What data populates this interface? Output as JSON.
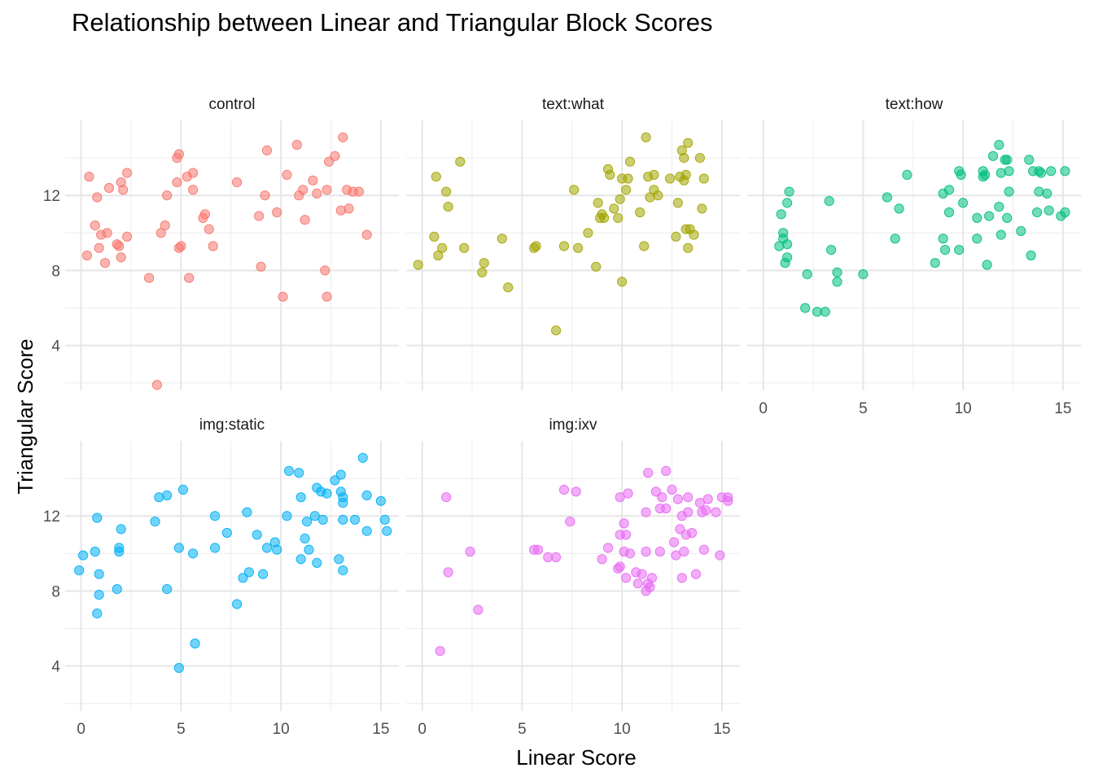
{
  "chart_data": {
    "type": "scatter",
    "title": "Relationship between Linear and Triangular Block Scores",
    "xlabel": "Linear Score",
    "ylabel": "Triangular Score",
    "xlim": [
      -0.8,
      15.9
    ],
    "ylim": [
      1.6,
      16.0
    ],
    "x_ticks": [
      "0",
      "5",
      "10",
      "15"
    ],
    "y_ticks": [
      "4",
      "8",
      "12"
    ],
    "grid": true,
    "panels": [
      {
        "name": "control",
        "color": "#F8766D",
        "points": [
          [
            0.3,
            8.8
          ],
          [
            0.4,
            13.0
          ],
          [
            0.7,
            10.4
          ],
          [
            0.8,
            11.9
          ],
          [
            0.9,
            9.2
          ],
          [
            1.0,
            9.9
          ],
          [
            1.2,
            8.4
          ],
          [
            1.3,
            10.0
          ],
          [
            1.4,
            12.4
          ],
          [
            1.8,
            9.4
          ],
          [
            1.9,
            9.3
          ],
          [
            2.0,
            12.7
          ],
          [
            2.0,
            8.7
          ],
          [
            2.1,
            12.3
          ],
          [
            2.3,
            13.2
          ],
          [
            2.3,
            9.8
          ],
          [
            3.4,
            7.6
          ],
          [
            3.8,
            1.9
          ],
          [
            4.0,
            10.0
          ],
          [
            4.2,
            10.4
          ],
          [
            4.3,
            12.0
          ],
          [
            4.8,
            12.7
          ],
          [
            4.8,
            14.0
          ],
          [
            4.9,
            14.2
          ],
          [
            4.9,
            9.2
          ],
          [
            5.0,
            9.3
          ],
          [
            5.3,
            13.0
          ],
          [
            5.4,
            7.6
          ],
          [
            5.6,
            13.2
          ],
          [
            5.6,
            12.3
          ],
          [
            6.1,
            10.8
          ],
          [
            6.2,
            11.0
          ],
          [
            6.4,
            10.2
          ],
          [
            6.6,
            9.3
          ],
          [
            7.8,
            12.7
          ],
          [
            8.9,
            10.9
          ],
          [
            9.0,
            8.2
          ],
          [
            9.2,
            12.0
          ],
          [
            9.3,
            14.4
          ],
          [
            9.8,
            11.1
          ],
          [
            10.1,
            6.6
          ],
          [
            10.3,
            13.1
          ],
          [
            10.8,
            14.7
          ],
          [
            10.9,
            12.0
          ],
          [
            11.1,
            12.3
          ],
          [
            11.2,
            10.7
          ],
          [
            11.6,
            12.8
          ],
          [
            11.8,
            12.1
          ],
          [
            12.2,
            8.0
          ],
          [
            12.3,
            12.3
          ],
          [
            12.3,
            6.6
          ],
          [
            12.4,
            13.8
          ],
          [
            12.7,
            14.1
          ],
          [
            13.0,
            11.2
          ],
          [
            13.1,
            15.1
          ],
          [
            13.3,
            12.3
          ],
          [
            13.4,
            11.3
          ],
          [
            13.6,
            12.2
          ],
          [
            13.9,
            12.2
          ],
          [
            14.3,
            9.9
          ]
        ]
      },
      {
        "name": "text:what",
        "color": "#A3A500",
        "points": [
          [
            -0.2,
            8.3
          ],
          [
            0.6,
            9.8
          ],
          [
            0.7,
            13.0
          ],
          [
            0.8,
            8.8
          ],
          [
            1.0,
            9.2
          ],
          [
            1.2,
            12.2
          ],
          [
            1.3,
            11.4
          ],
          [
            1.9,
            13.8
          ],
          [
            2.1,
            9.2
          ],
          [
            3.0,
            7.9
          ],
          [
            3.1,
            8.4
          ],
          [
            4.0,
            9.7
          ],
          [
            4.3,
            7.1
          ],
          [
            5.6,
            9.2
          ],
          [
            5.7,
            9.3
          ],
          [
            6.7,
            4.8
          ],
          [
            7.1,
            9.3
          ],
          [
            7.6,
            12.3
          ],
          [
            7.8,
            9.2
          ],
          [
            8.3,
            10.0
          ],
          [
            8.7,
            8.2
          ],
          [
            8.8,
            11.6
          ],
          [
            8.9,
            10.8
          ],
          [
            9.0,
            11.0
          ],
          [
            9.1,
            10.8
          ],
          [
            9.3,
            13.4
          ],
          [
            9.4,
            13.1
          ],
          [
            9.6,
            11.3
          ],
          [
            9.8,
            10.8
          ],
          [
            9.9,
            11.8
          ],
          [
            10.0,
            12.9
          ],
          [
            10.0,
            7.4
          ],
          [
            10.2,
            12.3
          ],
          [
            10.3,
            12.9
          ],
          [
            10.4,
            13.8
          ],
          [
            10.9,
            11.1
          ],
          [
            11.1,
            9.3
          ],
          [
            11.2,
            15.1
          ],
          [
            11.3,
            13.0
          ],
          [
            11.4,
            11.9
          ],
          [
            11.6,
            12.3
          ],
          [
            11.6,
            13.1
          ],
          [
            11.8,
            12.0
          ],
          [
            12.4,
            12.9
          ],
          [
            12.7,
            9.8
          ],
          [
            12.8,
            11.6
          ],
          [
            12.9,
            13.0
          ],
          [
            13.0,
            14.4
          ],
          [
            13.1,
            12.8
          ],
          [
            13.1,
            14.0
          ],
          [
            13.2,
            13.1
          ],
          [
            13.2,
            10.2
          ],
          [
            13.3,
            9.2
          ],
          [
            13.3,
            14.8
          ],
          [
            13.4,
            10.2
          ],
          [
            13.6,
            9.9
          ],
          [
            13.9,
            14.0
          ],
          [
            14.0,
            11.3
          ],
          [
            14.1,
            12.9
          ]
        ]
      },
      {
        "name": "text:how",
        "color": "#00BF7D",
        "points": [
          [
            0.8,
            9.3
          ],
          [
            0.9,
            11.0
          ],
          [
            1.0,
            10.0
          ],
          [
            1.0,
            9.7
          ],
          [
            1.1,
            8.4
          ],
          [
            1.2,
            9.4
          ],
          [
            1.2,
            8.7
          ],
          [
            1.2,
            11.6
          ],
          [
            1.3,
            12.2
          ],
          [
            2.1,
            6.0
          ],
          [
            2.2,
            7.8
          ],
          [
            2.7,
            5.8
          ],
          [
            3.1,
            5.8
          ],
          [
            3.3,
            11.7
          ],
          [
            3.4,
            9.1
          ],
          [
            3.7,
            7.4
          ],
          [
            3.7,
            7.9
          ],
          [
            5.0,
            7.8
          ],
          [
            6.2,
            11.9
          ],
          [
            6.6,
            9.7
          ],
          [
            6.8,
            11.3
          ],
          [
            7.2,
            13.1
          ],
          [
            8.6,
            8.4
          ],
          [
            9.0,
            9.7
          ],
          [
            9.0,
            12.1
          ],
          [
            9.1,
            9.1
          ],
          [
            9.3,
            11.1
          ],
          [
            9.3,
            12.3
          ],
          [
            9.8,
            9.1
          ],
          [
            9.8,
            13.3
          ],
          [
            9.9,
            13.1
          ],
          [
            10.0,
            11.6
          ],
          [
            10.7,
            9.7
          ],
          [
            10.7,
            10.8
          ],
          [
            11.0,
            13.0
          ],
          [
            11.0,
            13.3
          ],
          [
            11.1,
            13.1
          ],
          [
            11.2,
            8.3
          ],
          [
            11.3,
            10.9
          ],
          [
            11.5,
            14.1
          ],
          [
            11.8,
            11.4
          ],
          [
            11.8,
            14.7
          ],
          [
            11.9,
            9.9
          ],
          [
            11.9,
            13.2
          ],
          [
            12.1,
            13.9
          ],
          [
            12.2,
            13.9
          ],
          [
            12.2,
            10.8
          ],
          [
            12.3,
            13.3
          ],
          [
            12.3,
            12.2
          ],
          [
            12.9,
            10.1
          ],
          [
            13.3,
            13.9
          ],
          [
            13.4,
            8.8
          ],
          [
            13.5,
            13.3
          ],
          [
            13.7,
            11.1
          ],
          [
            13.8,
            13.3
          ],
          [
            13.8,
            12.2
          ],
          [
            13.9,
            13.2
          ],
          [
            14.2,
            12.1
          ],
          [
            14.3,
            11.2
          ],
          [
            14.4,
            13.3
          ],
          [
            14.9,
            10.9
          ],
          [
            15.1,
            13.3
          ],
          [
            15.1,
            11.1
          ]
        ]
      },
      {
        "name": "img:static",
        "color": "#00B0F6",
        "points": [
          [
            -0.1,
            9.1
          ],
          [
            0.1,
            9.9
          ],
          [
            0.7,
            10.1
          ],
          [
            0.8,
            11.9
          ],
          [
            0.8,
            6.8
          ],
          [
            0.9,
            8.9
          ],
          [
            0.9,
            7.8
          ],
          [
            1.8,
            8.1
          ],
          [
            1.9,
            10.1
          ],
          [
            1.9,
            10.3
          ],
          [
            2.0,
            11.3
          ],
          [
            3.7,
            11.7
          ],
          [
            3.9,
            13.0
          ],
          [
            4.3,
            13.1
          ],
          [
            4.3,
            8.1
          ],
          [
            4.9,
            10.3
          ],
          [
            4.9,
            3.9
          ],
          [
            5.1,
            13.4
          ],
          [
            5.6,
            10.0
          ],
          [
            5.7,
            5.2
          ],
          [
            6.7,
            10.3
          ],
          [
            6.7,
            12.0
          ],
          [
            7.3,
            11.1
          ],
          [
            7.8,
            7.3
          ],
          [
            8.1,
            8.7
          ],
          [
            8.3,
            12.2
          ],
          [
            8.4,
            9.0
          ],
          [
            8.8,
            11.0
          ],
          [
            9.1,
            8.9
          ],
          [
            9.3,
            10.3
          ],
          [
            9.7,
            10.6
          ],
          [
            9.8,
            10.2
          ],
          [
            10.3,
            12.0
          ],
          [
            10.4,
            14.4
          ],
          [
            10.9,
            14.3
          ],
          [
            11.0,
            9.7
          ],
          [
            11.0,
            13.0
          ],
          [
            11.2,
            10.8
          ],
          [
            11.3,
            11.7
          ],
          [
            11.4,
            10.2
          ],
          [
            11.7,
            12.0
          ],
          [
            11.8,
            13.5
          ],
          [
            11.8,
            9.5
          ],
          [
            12.0,
            13.3
          ],
          [
            12.1,
            11.8
          ],
          [
            12.3,
            13.2
          ],
          [
            12.7,
            13.9
          ],
          [
            12.9,
            9.7
          ],
          [
            13.0,
            13.3
          ],
          [
            13.0,
            14.2
          ],
          [
            13.1,
            13.0
          ],
          [
            13.1,
            12.7
          ],
          [
            13.1,
            9.1
          ],
          [
            13.1,
            11.8
          ],
          [
            13.7,
            11.8
          ],
          [
            14.1,
            15.1
          ],
          [
            14.3,
            13.1
          ],
          [
            14.3,
            11.2
          ],
          [
            15.0,
            12.8
          ],
          [
            15.2,
            11.8
          ],
          [
            15.3,
            11.2
          ]
        ]
      },
      {
        "name": "img:ixv",
        "color": "#E76BF3",
        "points": [
          [
            0.9,
            4.8
          ],
          [
            1.2,
            13.0
          ],
          [
            1.3,
            9.0
          ],
          [
            2.4,
            10.1
          ],
          [
            2.8,
            7.0
          ],
          [
            5.6,
            10.2
          ],
          [
            5.8,
            10.2
          ],
          [
            6.3,
            9.8
          ],
          [
            6.7,
            9.8
          ],
          [
            7.1,
            13.4
          ],
          [
            7.4,
            11.7
          ],
          [
            7.7,
            13.3
          ],
          [
            9.0,
            9.7
          ],
          [
            9.3,
            10.3
          ],
          [
            9.8,
            9.2
          ],
          [
            9.9,
            9.3
          ],
          [
            9.9,
            11.0
          ],
          [
            9.9,
            13.0
          ],
          [
            10.1,
            11.6
          ],
          [
            10.1,
            10.1
          ],
          [
            10.2,
            11.0
          ],
          [
            10.2,
            8.7
          ],
          [
            10.3,
            13.2
          ],
          [
            10.4,
            10.0
          ],
          [
            10.7,
            9.0
          ],
          [
            10.8,
            8.4
          ],
          [
            11.0,
            8.9
          ],
          [
            11.2,
            10.1
          ],
          [
            11.2,
            8.0
          ],
          [
            11.2,
            12.2
          ],
          [
            11.3,
            8.4
          ],
          [
            11.3,
            14.3
          ],
          [
            11.4,
            8.2
          ],
          [
            11.5,
            8.7
          ],
          [
            11.7,
            13.3
          ],
          [
            11.9,
            10.1
          ],
          [
            11.9,
            12.4
          ],
          [
            12.0,
            13.0
          ],
          [
            12.2,
            12.4
          ],
          [
            12.2,
            14.4
          ],
          [
            12.5,
            13.4
          ],
          [
            12.6,
            10.6
          ],
          [
            12.7,
            9.9
          ],
          [
            12.8,
            12.9
          ],
          [
            12.9,
            11.3
          ],
          [
            13.0,
            12.0
          ],
          [
            13.0,
            8.7
          ],
          [
            13.1,
            10.1
          ],
          [
            13.2,
            11.0
          ],
          [
            13.3,
            13.0
          ],
          [
            13.3,
            12.2
          ],
          [
            13.5,
            11.1
          ],
          [
            13.7,
            8.9
          ],
          [
            13.9,
            12.7
          ],
          [
            14.0,
            12.2
          ],
          [
            14.1,
            10.2
          ],
          [
            14.2,
            12.3
          ],
          [
            14.3,
            12.9
          ],
          [
            14.7,
            12.2
          ],
          [
            14.9,
            9.9
          ],
          [
            15.0,
            13.0
          ],
          [
            15.3,
            13.0
          ],
          [
            15.3,
            12.8
          ]
        ]
      }
    ]
  }
}
